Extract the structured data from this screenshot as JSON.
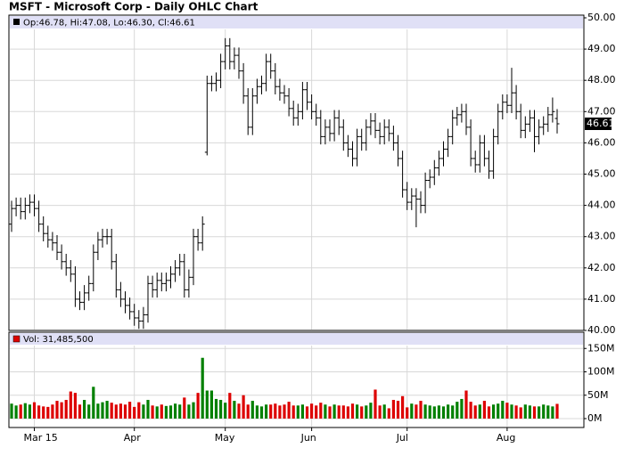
{
  "chart_data": {
    "type": "ohlc",
    "title": "MSFT - Microsoft Corp - Daily OHLC Chart",
    "legend": "Op:46.78, Hi:47.08, Lo:46.30, Cl:46.61",
    "color": "#000000",
    "grid": true,
    "categories": [
      null,
      null,
      null,
      null,
      null,
      "Mar 15",
      null,
      null,
      null,
      null,
      null,
      null,
      null,
      null,
      null,
      null,
      null,
      null,
      null,
      null,
      null,
      null,
      null,
      null,
      null,
      null,
      null,
      "Apr",
      null,
      null,
      null,
      null,
      null,
      null,
      null,
      null,
      null,
      null,
      null,
      null,
      null,
      null,
      null,
      null,
      null,
      null,
      null,
      "May",
      null,
      null,
      null,
      null,
      null,
      null,
      null,
      null,
      null,
      null,
      null,
      null,
      null,
      null,
      null,
      null,
      null,
      null,
      "Jun",
      null,
      null,
      null,
      null,
      null,
      null,
      null,
      null,
      null,
      null,
      null,
      null,
      null,
      null,
      null,
      null,
      null,
      null,
      null,
      null,
      "Jul",
      null,
      null,
      null,
      null,
      null,
      null,
      null,
      null,
      null,
      null,
      null,
      null,
      null,
      null,
      null,
      null,
      null,
      null,
      null,
      null,
      null,
      "Aug",
      null,
      null,
      null,
      null,
      null,
      null,
      null,
      null,
      null,
      null,
      null
    ],
    "open": [
      43.4,
      43.9,
      44.0,
      43.8,
      44.0,
      44.1,
      43.9,
      43.4,
      43.1,
      42.9,
      42.8,
      42.5,
      42.2,
      42.0,
      41.8,
      41.0,
      40.9,
      41.2,
      41.5,
      42.5,
      42.9,
      43.0,
      43.0,
      42.2,
      41.3,
      41.0,
      40.8,
      40.6,
      40.4,
      40.3,
      40.5,
      41.5,
      41.3,
      41.6,
      41.5,
      41.6,
      41.8,
      42.0,
      42.2,
      41.3,
      41.7,
      43.0,
      42.8,
      45.7,
      47.9,
      47.9,
      48.0,
      48.6,
      49.1,
      48.6,
      48.8,
      48.3,
      47.5,
      46.5,
      47.5,
      47.8,
      47.9,
      48.6,
      48.3,
      47.8,
      47.6,
      47.5,
      47.1,
      46.8,
      47.0,
      47.7,
      47.3,
      47.0,
      46.8,
      46.2,
      46.5,
      46.3,
      46.8,
      46.5,
      46.0,
      45.8,
      45.5,
      46.2,
      46.0,
      46.5,
      46.7,
      46.4,
      46.2,
      46.5,
      46.3,
      46.0,
      45.5,
      44.5,
      44.1,
      44.3,
      44.2,
      44.0,
      44.8,
      44.9,
      45.2,
      45.5,
      45.8,
      46.2,
      46.8,
      46.9,
      47.0,
      46.5,
      45.5,
      45.3,
      46.0,
      45.5,
      45.1,
      46.2,
      47.0,
      47.3,
      47.2,
      47.6,
      47.0,
      46.4,
      46.6,
      46.8,
      46.2,
      46.5,
      46.6,
      46.9,
      46.78
    ],
    "high": [
      44.15,
      44.25,
      44.25,
      44.25,
      44.35,
      44.35,
      44.15,
      43.65,
      43.35,
      43.15,
      43.05,
      42.75,
      42.45,
      42.25,
      42.05,
      41.25,
      41.45,
      41.75,
      42.75,
      43.15,
      43.25,
      43.25,
      43.25,
      42.45,
      41.55,
      41.25,
      41.05,
      40.85,
      40.65,
      40.75,
      41.75,
      41.75,
      41.85,
      41.85,
      41.85,
      42.05,
      42.25,
      42.45,
      42.45,
      41.95,
      43.25,
      43.25,
      43.65,
      48.15,
      48.15,
      48.25,
      48.85,
      49.35,
      49.35,
      49.05,
      49.05,
      48.55,
      47.75,
      47.75,
      48.05,
      48.15,
      48.85,
      48.85,
      48.55,
      48.05,
      47.85,
      47.75,
      47.35,
      47.25,
      47.95,
      47.95,
      47.55,
      47.25,
      47.05,
      46.75,
      46.75,
      47.05,
      47.05,
      46.75,
      46.25,
      46.05,
      46.45,
      46.45,
      46.75,
      46.95,
      46.95,
      46.65,
      46.75,
      46.75,
      46.55,
      46.25,
      45.75,
      44.75,
      44.55,
      44.55,
      44.45,
      45.05,
      45.15,
      45.45,
      45.75,
      46.05,
      46.45,
      47.05,
      47.15,
      47.25,
      47.25,
      46.75,
      45.75,
      46.25,
      46.25,
      45.75,
      46.45,
      47.25,
      47.55,
      47.55,
      48.4,
      47.85,
      47.25,
      46.85,
      47.05,
      47.05,
      46.75,
      46.85,
      47.15,
      47.45,
      47.08
    ],
    "low": [
      43.15,
      43.65,
      43.55,
      43.55,
      43.75,
      43.65,
      43.15,
      42.85,
      42.65,
      42.55,
      42.25,
      41.95,
      41.75,
      41.55,
      40.75,
      40.65,
      40.65,
      40.95,
      41.25,
      42.25,
      42.65,
      42.75,
      41.95,
      41.05,
      40.75,
      40.55,
      40.35,
      40.15,
      40.05,
      40.05,
      40.25,
      41.05,
      41.05,
      41.25,
      41.25,
      41.35,
      41.55,
      41.75,
      41.05,
      41.05,
      41.45,
      42.55,
      42.55,
      45.6,
      47.65,
      47.65,
      47.75,
      48.35,
      48.35,
      48.35,
      48.05,
      47.25,
      46.25,
      46.25,
      47.25,
      47.55,
      47.65,
      48.05,
      47.55,
      47.35,
      47.25,
      46.85,
      46.55,
      46.55,
      46.75,
      47.05,
      46.75,
      46.55,
      45.95,
      45.95,
      46.05,
      46.05,
      46.25,
      45.75,
      45.55,
      45.25,
      45.25,
      45.75,
      45.75,
      46.25,
      46.15,
      45.95,
      45.95,
      46.05,
      45.75,
      45.25,
      44.25,
      43.85,
      43.85,
      43.3,
      43.75,
      43.75,
      44.55,
      44.65,
      44.95,
      45.25,
      45.55,
      45.95,
      46.55,
      46.65,
      46.25,
      45.25,
      45.05,
      45.05,
      45.25,
      44.85,
      44.85,
      45.95,
      46.75,
      46.95,
      46.95,
      46.75,
      46.15,
      46.15,
      46.35,
      45.7,
      45.95,
      46.25,
      46.35,
      46.65,
      46.3
    ],
    "close": [
      43.9,
      44.0,
      43.8,
      44.0,
      44.1,
      43.9,
      43.4,
      43.1,
      42.9,
      42.8,
      42.5,
      42.2,
      42.0,
      41.8,
      41.0,
      40.9,
      41.2,
      41.5,
      42.5,
      42.9,
      43.0,
      43.0,
      42.2,
      41.3,
      41.0,
      40.8,
      40.6,
      40.4,
      40.3,
      40.5,
      41.5,
      41.3,
      41.6,
      41.5,
      41.6,
      41.8,
      42.0,
      42.2,
      41.3,
      41.7,
      43.0,
      42.8,
      43.4,
      47.9,
      47.9,
      48.0,
      48.6,
      49.1,
      48.6,
      48.8,
      48.3,
      47.5,
      46.5,
      47.5,
      47.8,
      47.9,
      48.6,
      48.3,
      47.8,
      47.6,
      47.5,
      47.1,
      46.8,
      47.0,
      47.7,
      47.3,
      47.0,
      46.8,
      46.2,
      46.5,
      46.3,
      46.8,
      46.5,
      46.0,
      45.8,
      45.5,
      46.2,
      46.0,
      46.5,
      46.7,
      46.4,
      46.2,
      46.5,
      46.3,
      46.0,
      45.5,
      44.5,
      44.1,
      44.3,
      44.2,
      44.0,
      44.8,
      44.9,
      45.2,
      45.5,
      45.8,
      46.2,
      46.8,
      46.9,
      47.0,
      46.5,
      45.5,
      45.3,
      46.0,
      45.5,
      45.1,
      46.2,
      47.0,
      47.3,
      47.2,
      47.6,
      47.0,
      46.4,
      46.6,
      46.8,
      46.2,
      46.5,
      46.6,
      46.9,
      47.0,
      46.61
    ],
    "ylim": [
      40,
      50
    ],
    "yticks": [
      {
        "value": 40,
        "label": "40.00"
      },
      {
        "value": 41,
        "label": "41.00"
      },
      {
        "value": 42,
        "label": "42.00"
      },
      {
        "value": 43,
        "label": "43.00"
      },
      {
        "value": 44,
        "label": "44.00"
      },
      {
        "value": 45,
        "label": "45.00"
      },
      {
        "value": 46,
        "label": "46.00"
      },
      {
        "value": 47,
        "label": "47.00"
      },
      {
        "value": 48,
        "label": "48.00"
      },
      {
        "value": 49,
        "label": "49.00"
      },
      {
        "value": 50,
        "label": "50.00"
      }
    ],
    "volume": {
      "legend": "Vol: 31,485,500",
      "up_color": "#008000",
      "down_color": "#dd0000",
      "values": [
        32,
        28,
        30,
        33,
        30,
        35,
        28,
        26,
        25,
        30,
        38,
        35,
        40,
        58,
        55,
        30,
        40,
        30,
        68,
        32,
        35,
        38,
        34,
        30,
        32,
        30,
        36,
        25,
        35,
        30,
        40,
        28,
        26,
        30,
        27,
        28,
        32,
        30,
        45,
        30,
        35,
        55,
        130,
        60,
        60,
        42,
        40,
        34,
        55,
        38,
        32,
        50,
        30,
        38,
        28,
        26,
        30,
        30,
        32,
        28,
        30,
        36,
        28,
        28,
        30,
        26,
        32,
        28,
        34,
        30,
        26,
        30,
        28,
        28,
        26,
        32,
        30,
        26,
        28,
        34,
        62,
        28,
        30,
        22,
        40,
        38,
        48,
        24,
        32,
        30,
        38,
        30,
        28,
        26,
        28,
        26,
        30,
        28,
        36,
        42,
        60,
        36,
        28,
        30,
        38,
        26,
        30,
        32,
        38,
        34,
        30,
        28,
        24,
        30,
        28,
        26,
        26,
        30,
        28,
        26,
        31.4855
      ],
      "ylim": [
        0,
        160
      ],
      "yticks": [
        {
          "value": 0,
          "label": "0M"
        },
        {
          "value": 50,
          "label": "50M"
        },
        {
          "value": 100,
          "label": "100M"
        },
        {
          "value": 150,
          "label": "150M"
        }
      ]
    }
  }
}
